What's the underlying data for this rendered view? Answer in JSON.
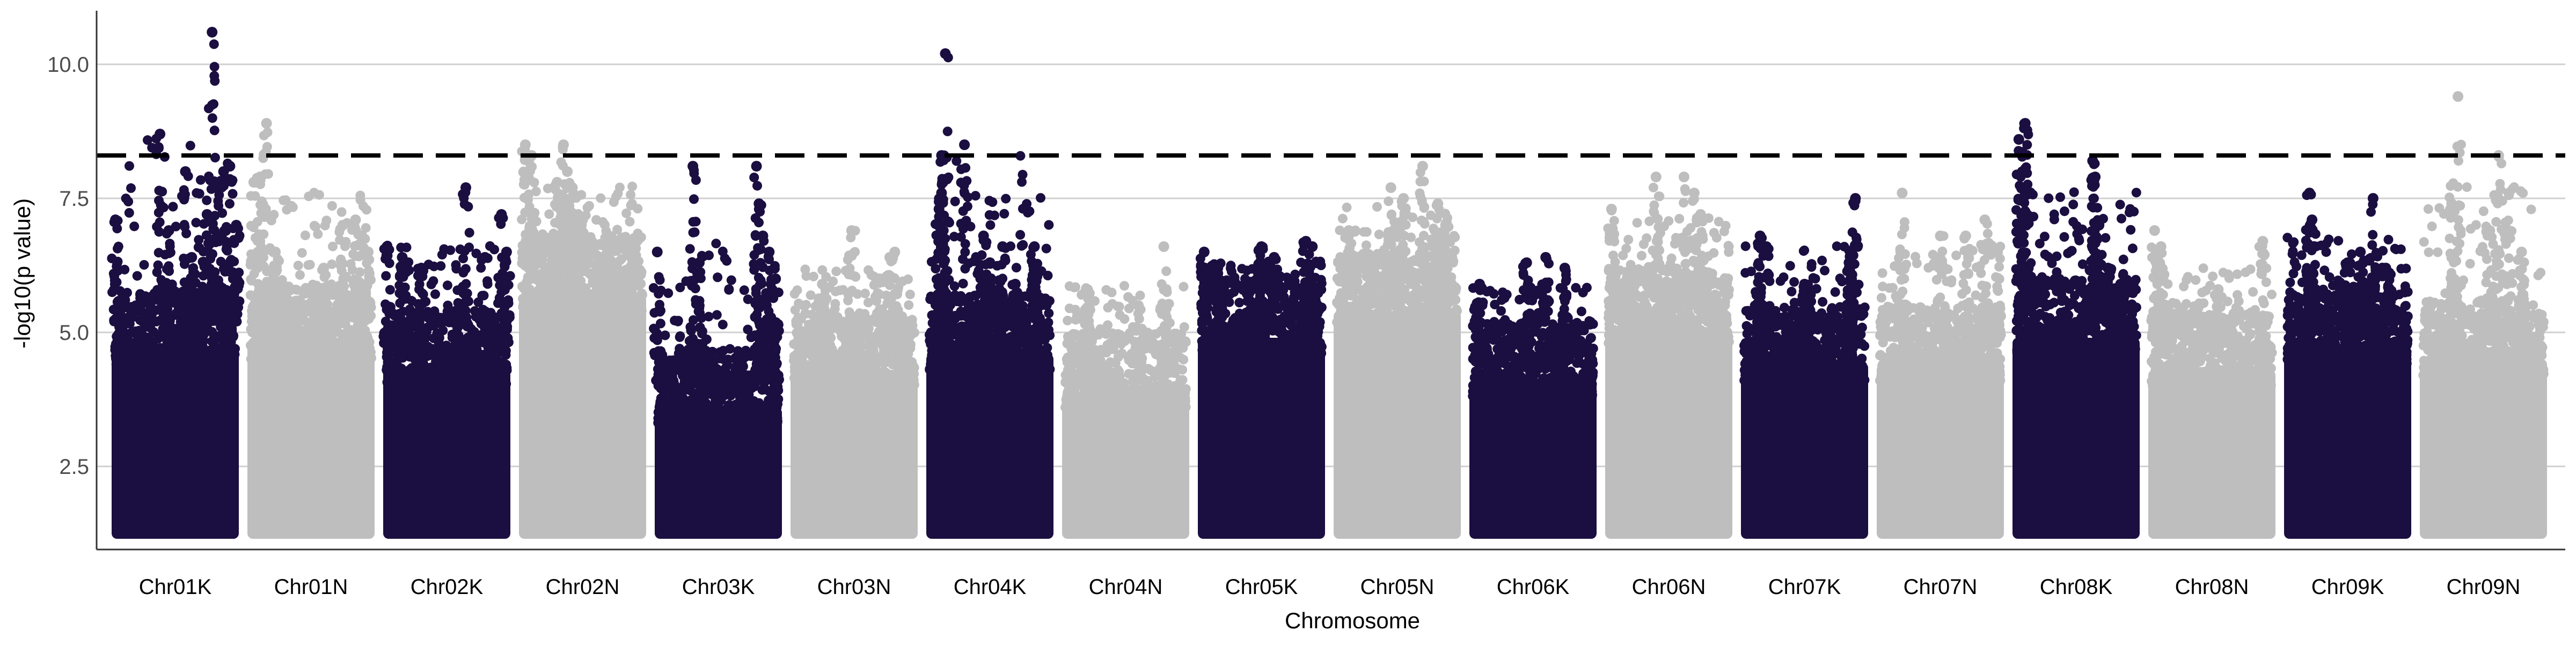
{
  "chart_data": {
    "type": "scatter",
    "subtype": "manhattan",
    "title": "",
    "xlabel": "Chromosome",
    "ylabel": "-log10(p value)",
    "ylim": [
      0.95,
      11.0
    ],
    "yticks": [
      2.5,
      5.0,
      7.5,
      10.0
    ],
    "ytick_labels": [
      "2.5",
      "5.0",
      "7.5",
      "10.0"
    ],
    "grid": "horizontal major lines",
    "legend": "none",
    "threshold": 8.3,
    "threshold_style": "dashed black",
    "colors": {
      "odd": "#1b0e40",
      "even": "#bebebe",
      "threshold": "#000000",
      "grid": "#d0d0d0",
      "axis": "#333333"
    },
    "categories": [
      "Chr01K",
      "Chr01N",
      "Chr02K",
      "Chr02N",
      "Chr03K",
      "Chr03N",
      "Chr04K",
      "Chr04N",
      "Chr05K",
      "Chr05N",
      "Chr06K",
      "Chr06N",
      "Chr07K",
      "Chr07N",
      "Chr08K",
      "Chr08N",
      "Chr09K",
      "Chr09N"
    ],
    "series": [
      {
        "category": "Chr01K",
        "color_group": "odd",
        "max": 10.6,
        "bulk_top": 5.6,
        "peaks": [
          [
            0.03,
            7.1
          ],
          [
            0.38,
            8.7
          ],
          [
            0.58,
            8.0
          ],
          [
            0.75,
            7.2
          ],
          [
            0.82,
            7.7
          ],
          [
            0.88,
            8.0
          ],
          [
            0.93,
            8.1
          ],
          [
            0.98,
            7.0
          ],
          [
            0.79,
            10.6
          ],
          [
            0.45,
            6.9
          ],
          [
            0.63,
            6.4
          ]
        ]
      },
      {
        "category": "Chr01N",
        "color_group": "even",
        "max": 8.9,
        "bulk_top": 5.7,
        "peaks": [
          [
            0.05,
            7.8
          ],
          [
            0.1,
            7.9
          ],
          [
            0.15,
            8.9
          ],
          [
            0.22,
            6.5
          ],
          [
            0.6,
            6.2
          ],
          [
            0.85,
            7.1
          ],
          [
            0.9,
            6.8
          ],
          [
            0.95,
            6.5
          ],
          [
            0.75,
            7.0
          ]
        ]
      },
      {
        "category": "Chr02K",
        "color_group": "odd",
        "max": 7.7,
        "bulk_top": 5.2,
        "peaks": [
          [
            0.03,
            6.6
          ],
          [
            0.15,
            6.4
          ],
          [
            0.3,
            6.2
          ],
          [
            0.65,
            7.7
          ],
          [
            0.8,
            6.4
          ],
          [
            0.93,
            7.2
          ],
          [
            0.97,
            6.5
          ]
        ]
      },
      {
        "category": "Chr02N",
        "color_group": "even",
        "max": 8.5,
        "bulk_top": 6.6,
        "peaks": [
          [
            0.05,
            8.5
          ],
          [
            0.1,
            8.3
          ],
          [
            0.35,
            8.5
          ],
          [
            0.38,
            8.0
          ],
          [
            0.3,
            7.8
          ],
          [
            0.42,
            7.7
          ],
          [
            0.5,
            7.1
          ],
          [
            0.7,
            6.8
          ],
          [
            0.9,
            6.6
          ]
        ]
      },
      {
        "category": "Chr03K",
        "color_group": "odd",
        "max": 8.1,
        "bulk_top": 4.5,
        "peaks": [
          [
            0.02,
            6.5
          ],
          [
            0.3,
            8.1
          ],
          [
            0.35,
            6.3
          ],
          [
            0.8,
            8.1
          ],
          [
            0.82,
            7.4
          ],
          [
            0.85,
            6.8
          ],
          [
            0.9,
            6.5
          ],
          [
            0.95,
            6.0
          ]
        ]
      },
      {
        "category": "Chr03N",
        "color_group": "even",
        "max": 6.9,
        "bulk_top": 5.2,
        "peaks": [
          [
            0.48,
            6.9
          ],
          [
            0.7,
            6.0
          ],
          [
            0.78,
            6.4
          ],
          [
            0.82,
            6.5
          ],
          [
            0.25,
            5.9
          ]
        ]
      },
      {
        "category": "Chr04K",
        "color_group": "odd",
        "max": 10.2,
        "bulk_top": 5.5,
        "peaks": [
          [
            0.15,
            10.2
          ],
          [
            0.12,
            8.3
          ],
          [
            0.12,
            7.6
          ],
          [
            0.1,
            7.3
          ],
          [
            0.3,
            8.5
          ],
          [
            0.45,
            6.8
          ],
          [
            0.5,
            6.3
          ],
          [
            0.6,
            6.6
          ],
          [
            0.7,
            5.9
          ],
          [
            0.85,
            6.6
          ]
        ]
      },
      {
        "category": "Chr04N",
        "color_group": "even",
        "max": 6.6,
        "bulk_top": 4.8,
        "peaks": [
          [
            0.2,
            5.8
          ],
          [
            0.8,
            6.6
          ],
          [
            0.6,
            5.5
          ]
        ]
      },
      {
        "category": "Chr05K",
        "color_group": "odd",
        "max": 6.7,
        "bulk_top": 5.8,
        "peaks": [
          [
            0.05,
            6.5
          ],
          [
            0.5,
            6.6
          ],
          [
            0.6,
            6.4
          ],
          [
            0.85,
            6.7
          ],
          [
            0.9,
            6.6
          ]
        ]
      },
      {
        "category": "Chr05N",
        "color_group": "even",
        "max": 8.1,
        "bulk_top": 6.3,
        "peaks": [
          [
            0.12,
            6.9
          ],
          [
            0.45,
            7.7
          ],
          [
            0.55,
            7.5
          ],
          [
            0.7,
            8.1
          ],
          [
            0.82,
            7.4
          ],
          [
            0.88,
            7.0
          ]
        ]
      },
      {
        "category": "Chr06K",
        "color_group": "odd",
        "max": 6.4,
        "bulk_top": 5.0,
        "peaks": [
          [
            0.08,
            5.9
          ],
          [
            0.45,
            6.3
          ],
          [
            0.6,
            6.4
          ],
          [
            0.75,
            6.2
          ]
        ]
      },
      {
        "category": "Chr06N",
        "color_group": "even",
        "max": 7.9,
        "bulk_top": 6.0,
        "peaks": [
          [
            0.05,
            7.3
          ],
          [
            0.4,
            7.9
          ],
          [
            0.62,
            7.9
          ],
          [
            0.7,
            7.6
          ],
          [
            0.75,
            7.2
          ]
        ]
      },
      {
        "category": "Chr07K",
        "color_group": "odd",
        "max": 7.5,
        "bulk_top": 5.3,
        "peaks": [
          [
            0.15,
            6.8
          ],
          [
            0.2,
            6.6
          ],
          [
            0.5,
            5.9
          ],
          [
            0.85,
            6.3
          ],
          [
            0.9,
            7.5
          ]
        ]
      },
      {
        "category": "Chr07N",
        "color_group": "even",
        "max": 7.6,
        "bulk_top": 5.3,
        "peaks": [
          [
            0.2,
            7.6
          ],
          [
            0.5,
            6.8
          ],
          [
            0.7,
            6.8
          ],
          [
            0.85,
            7.1
          ],
          [
            0.95,
            6.5
          ]
        ]
      },
      {
        "category": "Chr08K",
        "color_group": "odd",
        "max": 8.9,
        "bulk_top": 5.8,
        "peaks": [
          [
            0.05,
            8.6
          ],
          [
            0.08,
            8.3
          ],
          [
            0.1,
            8.9
          ],
          [
            0.12,
            7.6
          ],
          [
            0.63,
            8.2
          ],
          [
            0.65,
            7.9
          ],
          [
            0.68,
            7.0
          ],
          [
            0.75,
            6.2
          ],
          [
            0.85,
            5.9
          ]
        ]
      },
      {
        "category": "Chr08N",
        "color_group": "even",
        "max": 6.9,
        "bulk_top": 5.2,
        "peaks": [
          [
            0.05,
            6.9
          ],
          [
            0.1,
            6.6
          ],
          [
            0.55,
            5.8
          ],
          [
            0.9,
            6.7
          ]
        ]
      },
      {
        "category": "Chr09K",
        "color_group": "odd",
        "max": 7.6,
        "bulk_top": 5.6,
        "peaks": [
          [
            0.2,
            7.6
          ],
          [
            0.22,
            7.1
          ],
          [
            0.5,
            6.3
          ],
          [
            0.6,
            6.5
          ],
          [
            0.7,
            7.5
          ],
          [
            0.8,
            6.2
          ]
        ]
      },
      {
        "category": "Chr09N",
        "color_group": "even",
        "max": 9.4,
        "bulk_top": 5.4,
        "peaks": [
          [
            0.3,
            9.4
          ],
          [
            0.25,
            7.4
          ],
          [
            0.55,
            6.9
          ],
          [
            0.62,
            8.3
          ],
          [
            0.7,
            7.6
          ],
          [
            0.8,
            6.5
          ]
        ]
      }
    ]
  }
}
